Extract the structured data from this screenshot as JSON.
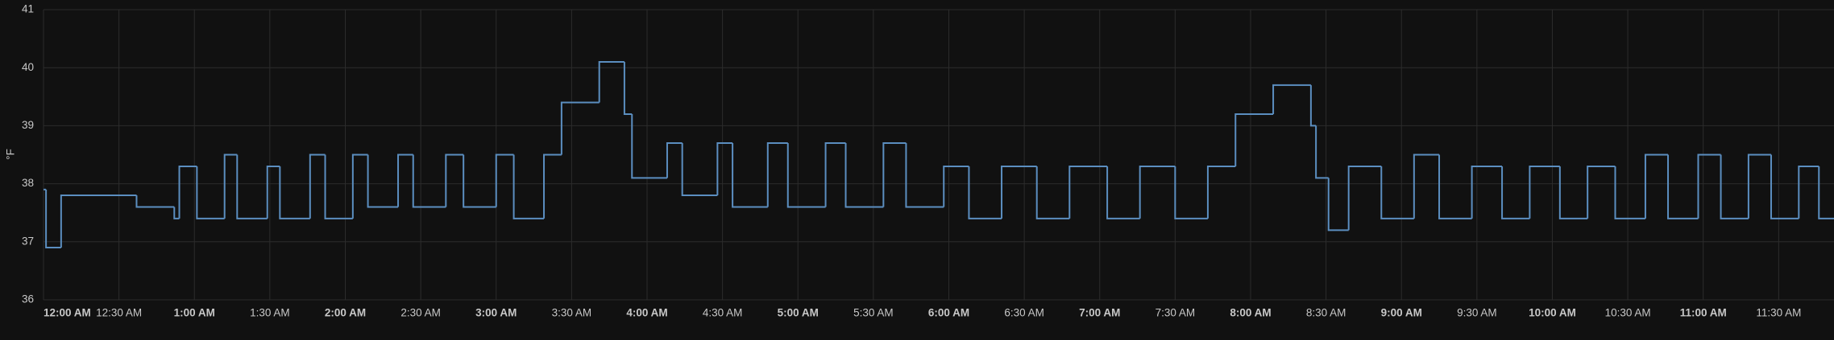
{
  "chart_data": {
    "type": "line",
    "step": true,
    "y_label": "°F",
    "color": "#5b8ec0",
    "grid": true,
    "xlim": [
      0,
      712
    ],
    "ylim": [
      36,
      41
    ],
    "yticks": [
      36,
      37,
      38,
      39,
      40,
      41
    ],
    "xticks": [
      {
        "value": 0,
        "label": "12:00 AM"
      },
      {
        "value": 30,
        "label": "12:30 AM"
      },
      {
        "value": 60,
        "label": "1:00 AM"
      },
      {
        "value": 90,
        "label": "1:30 AM"
      },
      {
        "value": 120,
        "label": "2:00 AM"
      },
      {
        "value": 150,
        "label": "2:30 AM"
      },
      {
        "value": 180,
        "label": "3:00 AM"
      },
      {
        "value": 210,
        "label": "3:30 AM"
      },
      {
        "value": 240,
        "label": "4:00 AM"
      },
      {
        "value": 270,
        "label": "4:30 AM"
      },
      {
        "value": 300,
        "label": "5:00 AM"
      },
      {
        "value": 330,
        "label": "5:30 AM"
      },
      {
        "value": 360,
        "label": "6:00 AM"
      },
      {
        "value": 390,
        "label": "6:30 AM"
      },
      {
        "value": 420,
        "label": "7:00 AM"
      },
      {
        "value": 450,
        "label": "7:30 AM"
      },
      {
        "value": 480,
        "label": "8:00 AM"
      },
      {
        "value": 510,
        "label": "8:30 AM"
      },
      {
        "value": 540,
        "label": "9:00 AM"
      },
      {
        "value": 570,
        "label": "9:30 AM"
      },
      {
        "value": 600,
        "label": "10:00 AM"
      },
      {
        "value": 630,
        "label": "10:30 AM"
      },
      {
        "value": 660,
        "label": "11:00 AM"
      },
      {
        "value": 690,
        "label": "11:30 AM"
      }
    ],
    "x": [
      0,
      1,
      7,
      37,
      52,
      54,
      61,
      72,
      77,
      89,
      94,
      106,
      112,
      123,
      129,
      141,
      147,
      160,
      167,
      180,
      187,
      199,
      206,
      221,
      231,
      234,
      248,
      254,
      268,
      274,
      288,
      296,
      311,
      319,
      334,
      343,
      358,
      368,
      381,
      395,
      408,
      423,
      436,
      450,
      463,
      474,
      489,
      504,
      506,
      511,
      519,
      532,
      545,
      555,
      568,
      580,
      591,
      603,
      614,
      625,
      637,
      646,
      658,
      667,
      678,
      687,
      698,
      706
    ],
    "values": [
      37.9,
      36.9,
      37.8,
      37.6,
      37.4,
      38.3,
      37.4,
      38.5,
      37.4,
      38.3,
      37.4,
      38.5,
      37.4,
      38.5,
      37.6,
      38.5,
      37.6,
      38.5,
      37.6,
      38.5,
      37.4,
      38.5,
      39.4,
      40.1,
      39.2,
      38.1,
      38.7,
      37.8,
      38.7,
      37.6,
      38.7,
      37.6,
      38.7,
      37.6,
      38.7,
      37.6,
      38.3,
      37.4,
      38.3,
      37.4,
      38.3,
      37.4,
      38.3,
      37.4,
      38.3,
      39.2,
      39.7,
      39.0,
      38.1,
      37.2,
      38.3,
      37.4,
      38.5,
      37.4,
      38.3,
      37.4,
      38.3,
      37.4,
      38.3,
      37.4,
      38.5,
      37.4,
      38.5,
      37.4,
      38.5,
      37.4,
      38.3,
      37.4
    ]
  }
}
